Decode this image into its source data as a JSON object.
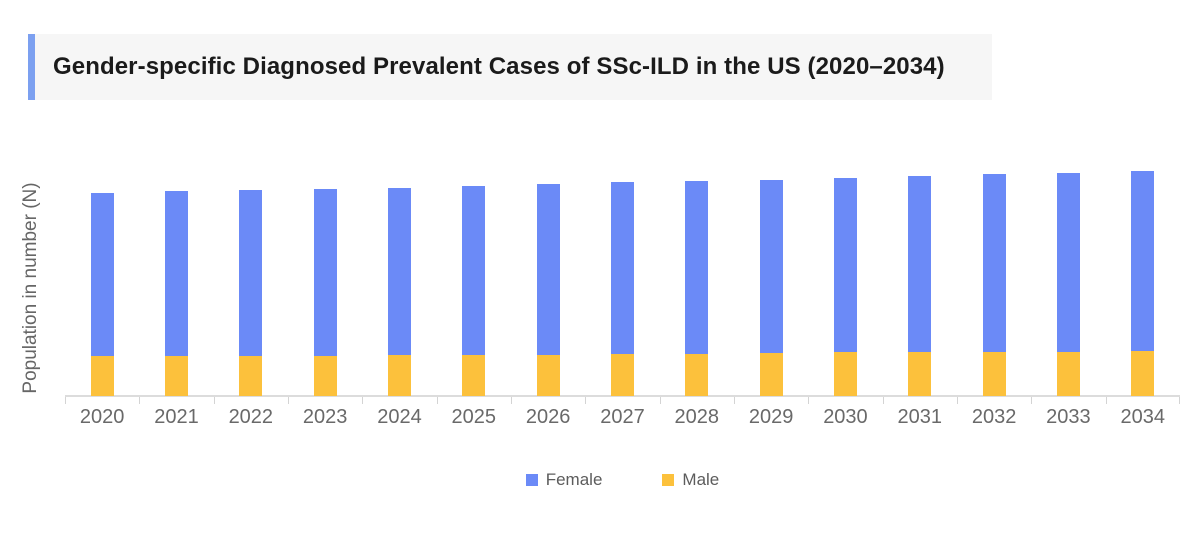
{
  "header": {
    "title": "Gender-specific Diagnosed Prevalent Cases of SSc-ILD in the US (2020–2034)",
    "accent_color": "#7ca0f0",
    "background": "#f6f6f6",
    "text_color": "#1b1b1b"
  },
  "chart_data": {
    "type": "bar",
    "stacked": true,
    "title": "Gender-specific Diagnosed Prevalent Cases of SSc-ILD in the US (2020–2034)",
    "ylabel": "Population in number (N)",
    "xlabel": "",
    "categories": [
      "2020",
      "2021",
      "2022",
      "2023",
      "2024",
      "2025",
      "2026",
      "2027",
      "2028",
      "2029",
      "2030",
      "2031",
      "2032",
      "2033",
      "2034"
    ],
    "series": [
      {
        "name": "Female",
        "color": "#6b8af7",
        "values": [
          163,
          165,
          165.5,
          166.5,
          167.5,
          169,
          170.5,
          172,
          173,
          173.5,
          174,
          176,
          177.5,
          179,
          180.5
        ]
      },
      {
        "name": "Male",
        "color": "#fcc13c",
        "values": [
          40,
          40,
          40.5,
          40.5,
          41,
          41,
          41.5,
          42,
          42.5,
          43,
          44,
          44,
          44.5,
          44.5,
          45
        ]
      }
    ],
    "value_units": "relative height (no numeric y-axis scale shown in chart)",
    "y_axis_tick_labels": [],
    "grid": false,
    "legend_position": "bottom-center",
    "axis_line_color": "#dcdcdc",
    "tick_color": "#d4d4d4",
    "x_label_color": "#696969"
  },
  "legend": {
    "items": [
      {
        "label": "Female",
        "color": "#6b8af7"
      },
      {
        "label": "Male",
        "color": "#fcc13c"
      }
    ]
  }
}
